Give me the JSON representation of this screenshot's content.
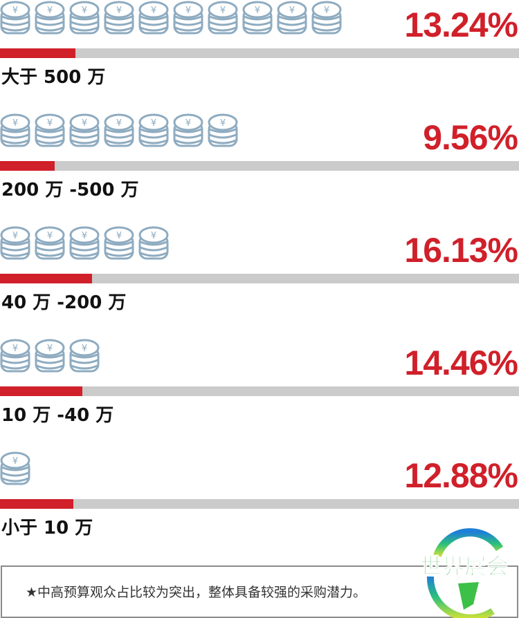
{
  "chart_data": {
    "type": "bar",
    "orientation": "horizontal",
    "categories": [
      "大于 500 万",
      "200 万 -500 万",
      "40 万 -200 万",
      "10 万 -40 万",
      "小于 10 万"
    ],
    "values": [
      13.24,
      9.56,
      16.13,
      14.46,
      12.88
    ],
    "value_labels": [
      "13.24%",
      "9.56%",
      "16.13%",
      "14.46%",
      "12.88%"
    ],
    "coin_counts": [
      10,
      7,
      5,
      3,
      1
    ],
    "colors": {
      "bar": "#d0202a",
      "track": "#cbcbcb",
      "coin": "#8eabc0",
      "value_text": "#d0202a"
    }
  },
  "note": "★中高预算观众占比较为突出，整体具备较强的采购潜力。",
  "logo_text": "世界展会"
}
